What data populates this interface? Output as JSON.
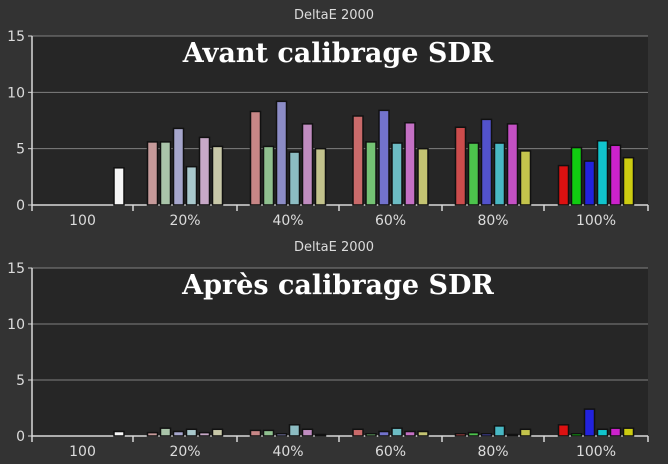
{
  "palette": {
    "background": "#333333",
    "plot_background": "#262626",
    "axis": "#d8d8d8",
    "gridline": "#808080",
    "text": "#dcdcdc",
    "big_title": "#ffffff"
  },
  "chart_data": [
    {
      "type": "bar",
      "title": "DeltaE 2000",
      "overlay_title": "Avant calibrage SDR",
      "ylim": [
        0,
        15
      ],
      "yticks": [
        "0",
        "5",
        "10",
        "15"
      ],
      "grid": true,
      "categories": [
        "100",
        "20%",
        "40%",
        "60%",
        "80%",
        "100%"
      ],
      "groups": [
        {
          "label": "100",
          "bars": [
            {
              "value": 3.3,
              "color": "#f5f5f5"
            }
          ]
        },
        {
          "label": "20%",
          "bars": [
            {
              "value": 5.6,
              "color": "#c69a9a"
            },
            {
              "value": 5.6,
              "color": "#a9c4a9"
            },
            {
              "value": 6.8,
              "color": "#a6a6cc"
            },
            {
              "value": 3.4,
              "color": "#a8c8cc"
            },
            {
              "value": 6.0,
              "color": "#c7a8c7"
            },
            {
              "value": 5.2,
              "color": "#c8c8a8"
            }
          ]
        },
        {
          "label": "40%",
          "bars": [
            {
              "value": 8.3,
              "color": "#c78686"
            },
            {
              "value": 5.2,
              "color": "#8fc08f"
            },
            {
              "value": 9.2,
              "color": "#8c8cc6"
            },
            {
              "value": 4.7,
              "color": "#8cbcc2"
            },
            {
              "value": 7.2,
              "color": "#c08cc0"
            },
            {
              "value": 5.0,
              "color": "#c2c28c"
            }
          ]
        },
        {
          "label": "60%",
          "bars": [
            {
              "value": 7.9,
              "color": "#c96a6a"
            },
            {
              "value": 5.6,
              "color": "#74c274"
            },
            {
              "value": 8.4,
              "color": "#7272cc"
            },
            {
              "value": 5.5,
              "color": "#6cbcc4"
            },
            {
              "value": 7.3,
              "color": "#c470c4"
            },
            {
              "value": 5.0,
              "color": "#c4c472"
            }
          ]
        },
        {
          "label": "80%",
          "bars": [
            {
              "value": 6.9,
              "color": "#cc4c4c"
            },
            {
              "value": 5.5,
              "color": "#4cc44c"
            },
            {
              "value": 7.6,
              "color": "#5252cc"
            },
            {
              "value": 5.5,
              "color": "#48b8c4"
            },
            {
              "value": 7.2,
              "color": "#c450c4"
            },
            {
              "value": 4.8,
              "color": "#c4c44c"
            }
          ]
        },
        {
          "label": "100%",
          "bars": [
            {
              "value": 3.5,
              "color": "#dd1111"
            },
            {
              "value": 5.1,
              "color": "#11cc11"
            },
            {
              "value": 3.9,
              "color": "#2222dd"
            },
            {
              "value": 5.7,
              "color": "#11c4cc"
            },
            {
              "value": 5.3,
              "color": "#cc22cc"
            },
            {
              "value": 4.2,
              "color": "#cccc11"
            }
          ]
        }
      ]
    },
    {
      "type": "bar",
      "title": "DeltaE 2000",
      "overlay_title": "Après calibrage SDR",
      "ylim": [
        0,
        15
      ],
      "yticks": [
        "0",
        "5",
        "10",
        "15"
      ],
      "grid": true,
      "categories": [
        "100",
        "20%",
        "40%",
        "60%",
        "80%",
        "100%"
      ],
      "groups": [
        {
          "label": "100",
          "bars": [
            {
              "value": 0.4,
              "color": "#f5f5f5"
            }
          ]
        },
        {
          "label": "20%",
          "bars": [
            {
              "value": 0.3,
              "color": "#c69a9a"
            },
            {
              "value": 0.7,
              "color": "#a9c4a9"
            },
            {
              "value": 0.4,
              "color": "#a6a6cc"
            },
            {
              "value": 0.6,
              "color": "#a8c8cc"
            },
            {
              "value": 0.3,
              "color": "#c7a8c7"
            },
            {
              "value": 0.6,
              "color": "#c8c8a8"
            }
          ]
        },
        {
          "label": "40%",
          "bars": [
            {
              "value": 0.5,
              "color": "#c78686"
            },
            {
              "value": 0.5,
              "color": "#8fc08f"
            },
            {
              "value": 0.2,
              "color": "#8c8cc6"
            },
            {
              "value": 1.0,
              "color": "#8cbcc2"
            },
            {
              "value": 0.6,
              "color": "#c08cc0"
            },
            {
              "value": 0.1,
              "color": "#c2c28c"
            }
          ]
        },
        {
          "label": "60%",
          "bars": [
            {
              "value": 0.6,
              "color": "#c96a6a"
            },
            {
              "value": 0.2,
              "color": "#74c274"
            },
            {
              "value": 0.4,
              "color": "#7272cc"
            },
            {
              "value": 0.7,
              "color": "#6cbcc4"
            },
            {
              "value": 0.4,
              "color": "#c470c4"
            },
            {
              "value": 0.4,
              "color": "#c4c472"
            }
          ]
        },
        {
          "label": "80%",
          "bars": [
            {
              "value": 0.2,
              "color": "#cc4c4c"
            },
            {
              "value": 0.3,
              "color": "#4cc44c"
            },
            {
              "value": 0.2,
              "color": "#5252cc"
            },
            {
              "value": 0.9,
              "color": "#48b8c4"
            },
            {
              "value": 0.1,
              "color": "#c450c4"
            },
            {
              "value": 0.6,
              "color": "#c4c44c"
            }
          ]
        },
        {
          "label": "100%",
          "bars": [
            {
              "value": 1.0,
              "color": "#dd1111"
            },
            {
              "value": 0.2,
              "color": "#11cc11"
            },
            {
              "value": 2.4,
              "color": "#2222dd"
            },
            {
              "value": 0.6,
              "color": "#11c4cc"
            },
            {
              "value": 0.7,
              "color": "#cc22cc"
            },
            {
              "value": 0.7,
              "color": "#cccc11"
            }
          ]
        }
      ]
    }
  ]
}
